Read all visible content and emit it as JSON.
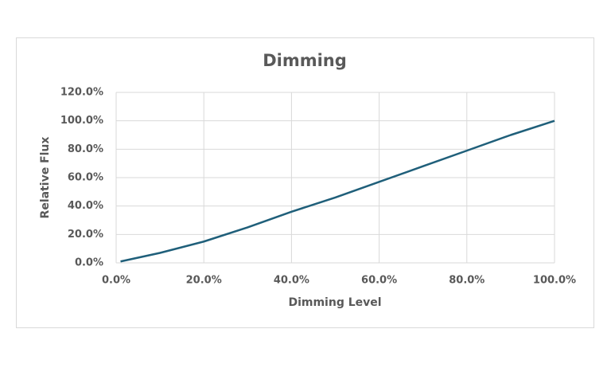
{
  "chart_data": {
    "type": "line",
    "title": "Dimming",
    "x_label": "Dimming Level",
    "y_label": "Relative Flux",
    "x": [
      1,
      10,
      20,
      30,
      40,
      50,
      60,
      70,
      80,
      90,
      100
    ],
    "series": [
      {
        "color": "#1f5f7a",
        "values": [
          1,
          7,
          15,
          25,
          36,
          46,
          57,
          68,
          79,
          90,
          100
        ]
      }
    ],
    "xlim": [
      0,
      100
    ],
    "xticks": [
      {
        "value": 0,
        "label": "0.0%"
      },
      {
        "value": 20,
        "label": "20.0%"
      },
      {
        "value": 40,
        "label": "40.0%"
      },
      {
        "value": 60,
        "label": "60.0%"
      },
      {
        "value": 80,
        "label": "80.0%"
      },
      {
        "value": 100,
        "label": "100.0%"
      }
    ],
    "ylim": [
      0,
      120
    ],
    "yticks": [
      {
        "value": 0,
        "label": "0.0%"
      },
      {
        "value": 20,
        "label": "20.0%"
      },
      {
        "value": 40,
        "label": "40.0%"
      },
      {
        "value": 60,
        "label": "60.0%"
      },
      {
        "value": 80,
        "label": "80.0%"
      },
      {
        "value": 100,
        "label": "100.0%"
      },
      {
        "value": 120,
        "label": "120.0%"
      }
    ],
    "grid": true
  }
}
